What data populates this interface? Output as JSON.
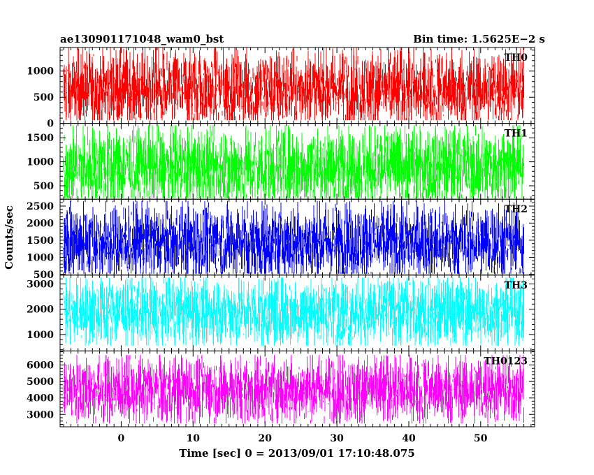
{
  "header": {
    "left_title": "ae130901171048_wam0_bst",
    "right_title": "Bin time: 1.5625E−2 s"
  },
  "chart_data": {
    "type": "line",
    "xlabel": "Time [sec] 0 = 2013/09/01 17:10:48.075",
    "ylabel": "Counts/sec",
    "xlim": [
      -8.5,
      57.5
    ],
    "x_start": -8.0,
    "x_end": 56.0,
    "x_ticks": [
      0,
      10,
      20,
      30,
      40,
      50
    ],
    "grid": false,
    "panels": [
      {
        "name": "TH0",
        "color": "#ff0000",
        "ylim": [
          0,
          1450
        ],
        "y_ticks": [
          0,
          500,
          1000
        ],
        "baseline": 650,
        "noise": 380,
        "min_value": 60,
        "max_value": 1450
      },
      {
        "name": "TH1",
        "color": "#00ff00",
        "ylim": [
          220,
          1800
        ],
        "y_ticks": [
          500,
          1000,
          1500
        ],
        "baseline": 880,
        "noise": 420,
        "min_value": 250,
        "max_value": 1760
      },
      {
        "name": "TH2",
        "color": "#0000ff",
        "ylim": [
          480,
          2700
        ],
        "y_ticks": [
          500,
          1000,
          1500,
          2000,
          2500
        ],
        "baseline": 1450,
        "noise": 560,
        "min_value": 520,
        "max_value": 2650
      },
      {
        "name": "TH3",
        "color": "#00ffff",
        "ylim": [
          350,
          3350
        ],
        "y_ticks": [
          1000,
          2000,
          3000
        ],
        "baseline": 1900,
        "noise": 680,
        "min_value": 560,
        "max_value": 3250
      },
      {
        "name": "TH0123",
        "color": "#ff00ff",
        "ylim": [
          2250,
          6850
        ],
        "y_ticks": [
          3000,
          4000,
          5000,
          6000
        ],
        "baseline": 4500,
        "noise": 1050,
        "min_value": 2450,
        "max_value": 6600
      }
    ]
  }
}
